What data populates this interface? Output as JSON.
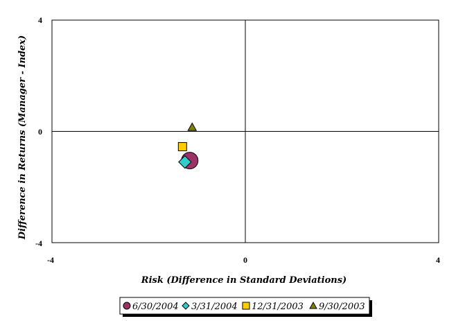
{
  "chart_data": {
    "type": "scatter",
    "title": "",
    "xlabel": "Risk (Difference in Standard Deviations)",
    "ylabel": "Difference in Returns (Manager - Index)",
    "xlim": [
      -4,
      4
    ],
    "ylim": [
      -4,
      4
    ],
    "x_ticks": [
      "-4",
      "0",
      "4"
    ],
    "y_ticks": [
      "4",
      "0",
      "-4"
    ],
    "grid": false,
    "legend_position": "bottom",
    "series": [
      {
        "name": "6/30/2004",
        "marker": "circle",
        "color": "#993366",
        "x": -1.15,
        "y": -1.05
      },
      {
        "name": "3/31/2004",
        "marker": "diamond",
        "color": "#33CCCC",
        "x": -1.25,
        "y": -1.1
      },
      {
        "name": "12/31/2003",
        "marker": "square",
        "color": "#FFCC00",
        "x": -1.3,
        "y": -0.55
      },
      {
        "name": "9/30/2003",
        "marker": "triangle",
        "color": "#808000",
        "x": -1.1,
        "y": 0.15
      }
    ]
  }
}
